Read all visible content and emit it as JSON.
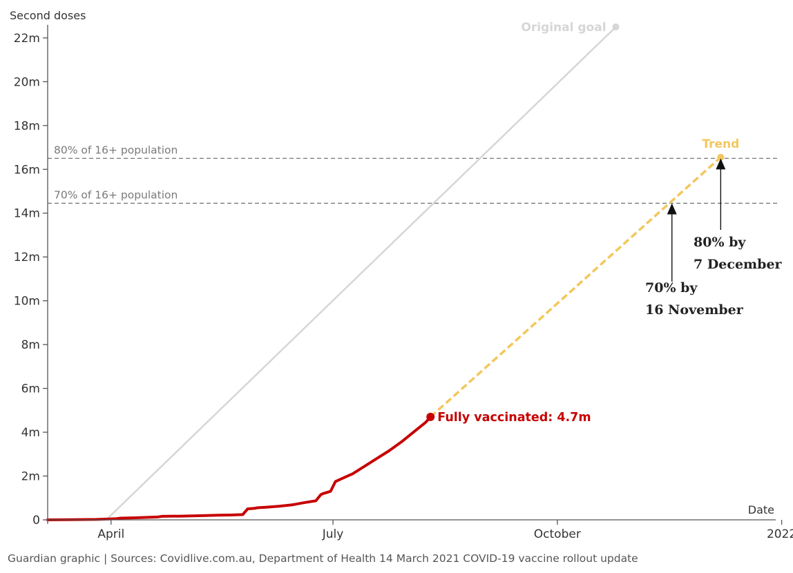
{
  "chart_data": {
    "type": "line",
    "ylabel": "Second doses",
    "xlabel": "Date",
    "ylim": [
      0,
      22.5
    ],
    "y_unit": "millions",
    "yticks": [
      {
        "value": 0,
        "label": "0"
      },
      {
        "value": 2,
        "label": "2m"
      },
      {
        "value": 4,
        "label": "4m"
      },
      {
        "value": 6,
        "label": "6m"
      },
      {
        "value": 8,
        "label": "8m"
      },
      {
        "value": 10,
        "label": "10m"
      },
      {
        "value": 12,
        "label": "12m"
      },
      {
        "value": 14,
        "label": "14m"
      },
      {
        "value": 16,
        "label": "16m"
      },
      {
        "value": 18,
        "label": "18m"
      },
      {
        "value": 20,
        "label": "20m"
      },
      {
        "value": 22,
        "label": "22m"
      }
    ],
    "x_domain_days": [
      0,
      298
    ],
    "x_note": "x values are days since 6 March 2021",
    "xticks": [
      {
        "day": 26,
        "label": "April"
      },
      {
        "day": 117,
        "label": "July"
      },
      {
        "day": 209,
        "label": "October"
      },
      {
        "day": 301,
        "label": "2022"
      }
    ],
    "reference_lines": [
      {
        "value": 16.5,
        "label": "80% of 16+ population"
      },
      {
        "value": 14.45,
        "label": "70% of 16+ population"
      }
    ],
    "series": [
      {
        "name": "Original goal",
        "label": "Original goal",
        "color": "#d6d6d6",
        "x": [
          24,
          233
        ],
        "y": [
          0,
          22.5
        ]
      },
      {
        "name": "Fully vaccinated",
        "label": "Fully vaccinated: 4.7m",
        "color": "#c70000",
        "x": [
          0,
          10,
          20,
          28,
          30,
          35,
          40,
          45,
          47,
          55,
          65,
          70,
          75,
          80,
          82,
          85,
          86,
          90,
          95,
          100,
          102,
          105,
          110,
          112,
          113,
          116,
          118,
          120,
          125,
          130,
          135,
          140,
          145,
          150,
          155,
          157
        ],
        "y": [
          0,
          0.01,
          0.02,
          0.05,
          0.08,
          0.09,
          0.11,
          0.13,
          0.16,
          0.17,
          0.2,
          0.21,
          0.22,
          0.24,
          0.5,
          0.53,
          0.55,
          0.58,
          0.62,
          0.68,
          0.72,
          0.78,
          0.87,
          1.15,
          1.2,
          1.3,
          1.75,
          1.85,
          2.1,
          2.45,
          2.8,
          3.15,
          3.55,
          4.0,
          4.45,
          4.7
        ]
      },
      {
        "name": "Trend",
        "label": "Trend",
        "color": "#f2c75c",
        "x": [
          157,
          276
        ],
        "y": [
          4.7,
          16.55
        ]
      }
    ],
    "annotations": [
      {
        "x": 256,
        "y": 14.45,
        "line1": "70% by",
        "line2": "16 November"
      },
      {
        "x": 276,
        "y": 16.5,
        "line1": "80% by",
        "line2": "7 December"
      }
    ]
  },
  "source": "Guardian graphic | Sources: Covidlive.com.au, Department of Health 14 March 2021 COVID-19 vaccine rollout update"
}
